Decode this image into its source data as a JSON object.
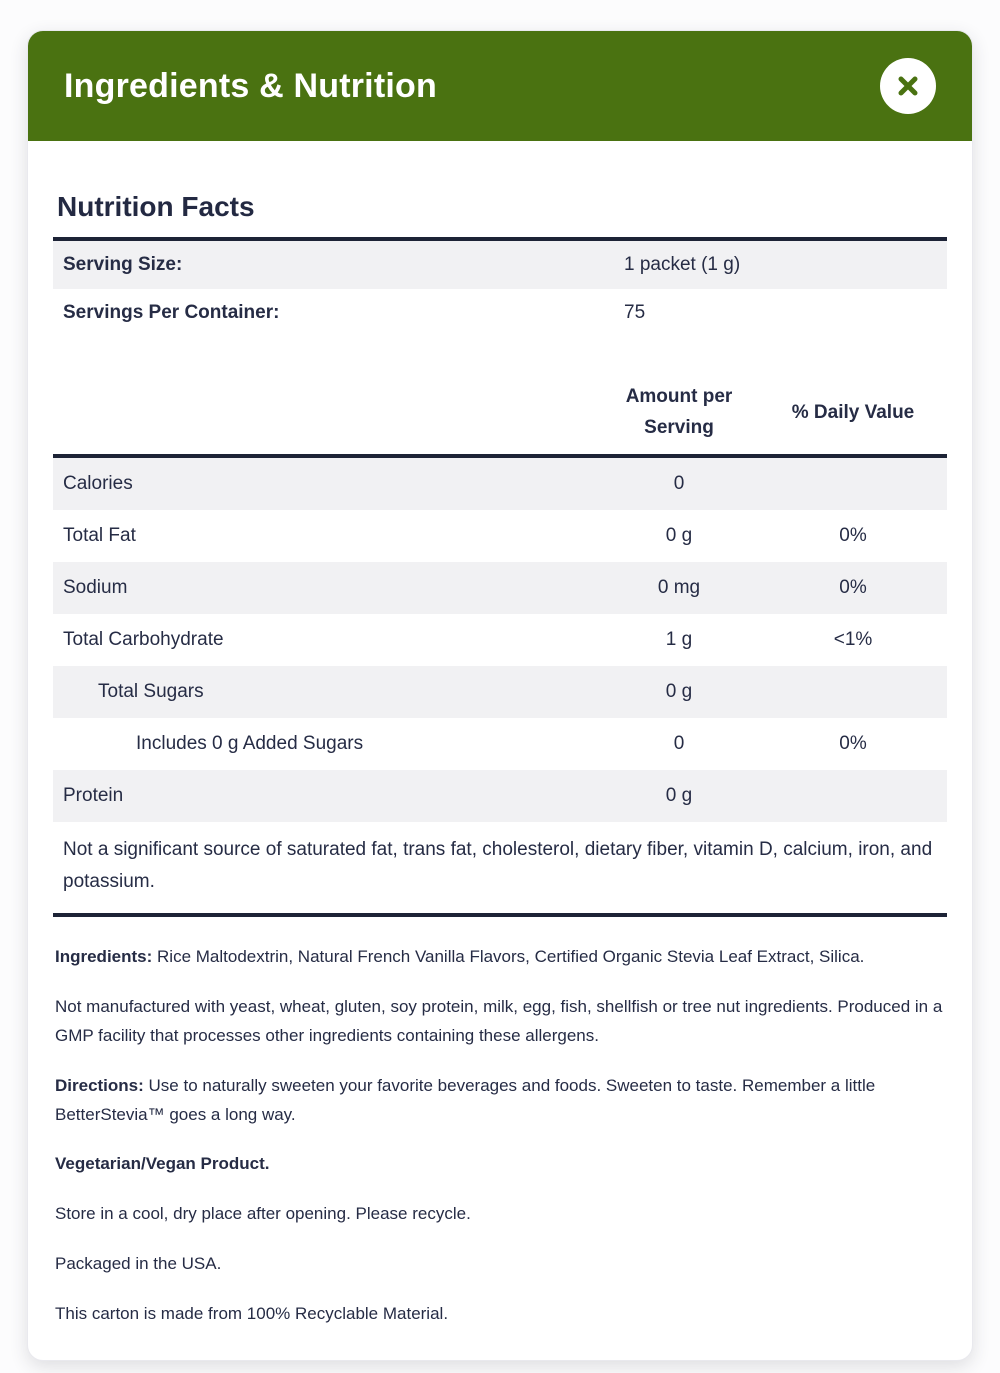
{
  "modal": {
    "title": "Ingredients & Nutrition",
    "close_icon": "close-x-icon",
    "colors": {
      "header_green": "#4a7211",
      "text_navy": "#262c45",
      "rule_navy": "#1d2336",
      "row_gray": "#f1f1f3"
    }
  },
  "nutrition_facts": {
    "title": "Nutrition Facts",
    "serving_rows": [
      {
        "label": "Serving Size:",
        "value": "1 packet (1 g)"
      },
      {
        "label": "Servings Per Container:",
        "value": "75"
      }
    ],
    "column_headers": {
      "amount": "Amount per Serving",
      "daily_value": "% Daily Value"
    },
    "rows": [
      {
        "label": "Calories",
        "amount": "0",
        "dv": "",
        "indent": 0
      },
      {
        "label": "Total Fat",
        "amount": "0 g",
        "dv": "0%",
        "indent": 0
      },
      {
        "label": "Sodium",
        "amount": "0 mg",
        "dv": "0%",
        "indent": 0
      },
      {
        "label": "Total Carbohydrate",
        "amount": "1 g",
        "dv": "<1%",
        "indent": 0
      },
      {
        "label": "Total Sugars",
        "amount": "0 g",
        "dv": "",
        "indent": 1
      },
      {
        "label": "Includes 0 g Added Sugars",
        "amount": "0",
        "dv": "0%",
        "indent": 2
      },
      {
        "label": "Protein",
        "amount": "0 g",
        "dv": "",
        "indent": 0
      }
    ],
    "footnote": "Not a significant source of saturated fat, trans fat, cholesterol, dietary fiber, vitamin D, calcium, iron, and potassium."
  },
  "details": {
    "paragraphs": [
      {
        "label": "Ingredients:",
        "text": "Rice Maltodextrin, Natural French Vanilla Flavors, Certified Organic Stevia Leaf Extract, Silica."
      },
      {
        "label": "",
        "text": "Not manufactured with yeast, wheat, gluten, soy protein, milk, egg, fish, shellfish or tree nut ingredients. Produced in a GMP facility that processes other ingredients containing these allergens."
      },
      {
        "label": "Directions:",
        "text": "Use to naturally sweeten your favorite beverages and foods. Sweeten to taste. Remember a little BetterStevia™ goes a long way."
      },
      {
        "label": "Vegetarian/Vegan Product.",
        "text": ""
      },
      {
        "label": "",
        "text": "Store in a cool, dry place after opening. Please recycle."
      },
      {
        "label": "",
        "text": "Packaged in the USA."
      },
      {
        "label": "",
        "text": "This carton is made from 100% Recyclable Material."
      }
    ]
  }
}
